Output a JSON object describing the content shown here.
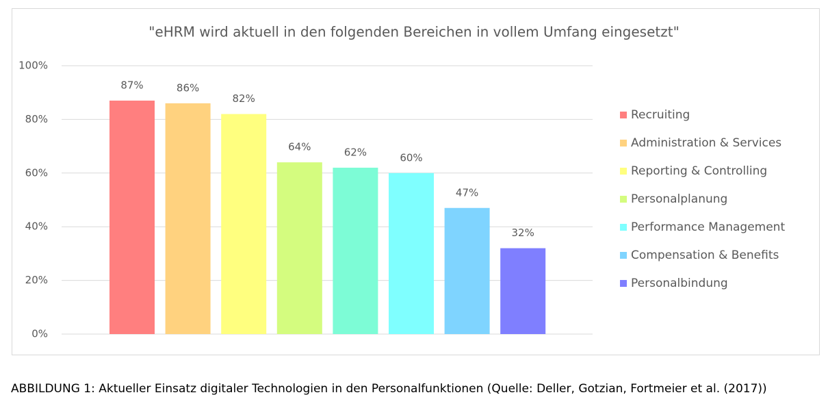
{
  "chart_data": {
    "type": "bar",
    "title": "\"eHRM wird aktuell in den folgenden Bereichen in vollem Umfang eingesetzt\"",
    "series": [
      {
        "name": "Recruiting",
        "color": "#ff7f7f",
        "values": [
          87
        ],
        "value_labels": [
          "87%"
        ]
      },
      {
        "name": "Administration & Services",
        "color": "#ffd27f",
        "values": [
          86
        ],
        "value_labels": [
          "86%"
        ]
      },
      {
        "name": "Reporting & Controlling",
        "color": "#ffff7f",
        "values": [
          82
        ],
        "value_labels": [
          "82%"
        ]
      },
      {
        "name": "Personalplanung",
        "color": "#d4fc7f",
        "values": [
          64
        ],
        "value_labels": [
          "64%"
        ]
      },
      {
        "name": null,
        "color": "#7dfcd6",
        "values": [
          62
        ],
        "value_labels": [
          "62%"
        ]
      },
      {
        "name": "Performance Management",
        "color": "#7fffff",
        "values": [
          60
        ],
        "value_labels": [
          "60%"
        ]
      },
      {
        "name": "Compensation & Benefits",
        "color": "#7fd4ff",
        "values": [
          47
        ],
        "value_labels": [
          "47%"
        ]
      },
      {
        "name": "Personalbindung",
        "color": "#7f7fff",
        "values": [
          32
        ],
        "value_labels": [
          "32%"
        ]
      }
    ],
    "ylim": [
      0,
      100
    ],
    "yticks": [
      {
        "value": 0,
        "label": "0%"
      },
      {
        "value": 20,
        "label": "20%"
      },
      {
        "value": 40,
        "label": "40%"
      },
      {
        "value": 60,
        "label": "60%"
      },
      {
        "value": 80,
        "label": "80%"
      },
      {
        "value": 100,
        "label": "100%"
      }
    ],
    "grid": true,
    "legend": "right"
  },
  "caption": "ABBILDUNG 1: Aktueller Einsatz digitaler Technologien in den Personalfunktionen (Quelle: Deller, Gotzian, Fortmeier et al. (2017))"
}
